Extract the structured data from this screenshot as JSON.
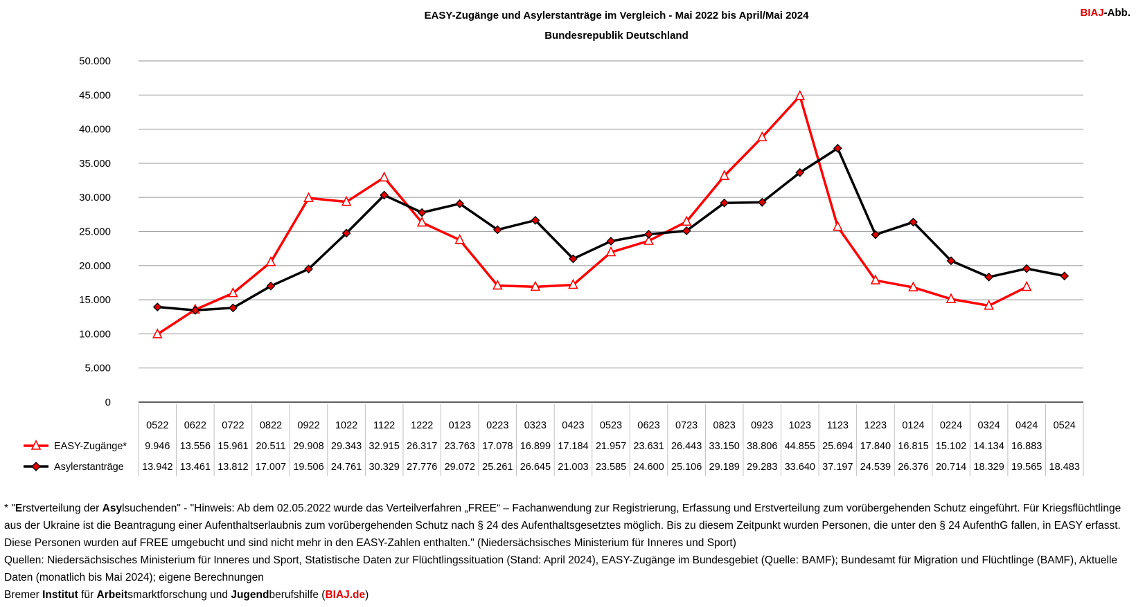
{
  "header": {
    "title": "EASY-Zugänge und Asylerstanträge im Vergleich - Mai 2022 bis April/Mai 2024",
    "subtitle": "Bundesrepublik Deutschland",
    "badge_brand": "BIAJ",
    "badge_suffix": "-Abb."
  },
  "colors": {
    "easy": "#ff0000",
    "asyl": "#000000",
    "marker_fill": "#e00000",
    "grid": "#a6a6a6"
  },
  "chart_data": {
    "type": "line",
    "ylim": [
      0,
      50000
    ],
    "yticks": [
      0,
      5000,
      10000,
      15000,
      20000,
      25000,
      30000,
      35000,
      40000,
      45000,
      50000
    ],
    "ytick_labels": [
      "0",
      "5.000",
      "10.000",
      "15.000",
      "20.000",
      "25.000",
      "30.000",
      "35.000",
      "40.000",
      "45.000",
      "50.000"
    ],
    "grid": true,
    "categories": [
      "0522",
      "0622",
      "0722",
      "0822",
      "0922",
      "1022",
      "1122",
      "1222",
      "0123",
      "0223",
      "0323",
      "0423",
      "0523",
      "0623",
      "0723",
      "0823",
      "0923",
      "1023",
      "1123",
      "1223",
      "0124",
      "0224",
      "0324",
      "0424",
      "0524"
    ],
    "series": [
      {
        "name": "EASY-Zugänge*",
        "marker": "triangle-open",
        "values": [
          9946,
          13556,
          15961,
          20511,
          29908,
          29343,
          32915,
          26317,
          23763,
          17078,
          16899,
          17184,
          21957,
          23631,
          26443,
          33150,
          38806,
          44855,
          25694,
          17840,
          16815,
          15102,
          14134,
          16883,
          null
        ],
        "labels": [
          "9.946",
          "13.556",
          "15.961",
          "20.511",
          "29.908",
          "29.343",
          "32.915",
          "26.317",
          "23.763",
          "17.078",
          "16.899",
          "17.184",
          "21.957",
          "23.631",
          "26.443",
          "33.150",
          "38.806",
          "44.855",
          "25.694",
          "17.840",
          "16.815",
          "15.102",
          "14.134",
          "16.883",
          ""
        ]
      },
      {
        "name": "Asylerstanträge",
        "marker": "diamond-filled",
        "values": [
          13942,
          13461,
          13812,
          17007,
          19506,
          24761,
          30329,
          27776,
          29072,
          25261,
          26645,
          21003,
          23585,
          24600,
          25106,
          29189,
          29283,
          33640,
          37197,
          24539,
          26376,
          20714,
          18329,
          19565,
          18483
        ],
        "labels": [
          "13.942",
          "13.461",
          "13.812",
          "17.007",
          "19.506",
          "24.761",
          "30.329",
          "27.776",
          "29.072",
          "25.261",
          "26.645",
          "21.003",
          "23.585",
          "24.600",
          "25.106",
          "29.189",
          "29.283",
          "33.640",
          "37.197",
          "24.539",
          "26.376",
          "20.714",
          "18.329",
          "19.565",
          "18.483"
        ]
      }
    ]
  },
  "footnote": {
    "line1_prefix": "* \"",
    "line1_b1": "E",
    "line1_t1": "rstverteilung der ",
    "line1_b2": "Asy",
    "line1_t2": "lsuchenden\" - \"Hinweis: Ab dem 02.05.2022 wurde das Verteilverfahren „FREE“ – Fachanwendung zur Registrierung, Erfassung und Erstverteilung zum vorübergehenden Schutz eingeführt. Für Kriegsflüchtlinge aus der Ukraine ist die Beantragung einer Aufenthaltserlaubnis zum vorübergehenden Schutz nach § 24 des Aufenthaltsgesetztes möglich. Bis zu diesem Zeitpunkt wurden Personen, die unter den § 24 AufenthG fallen, in EASY erfasst. Diese Personen wurden auf FREE umgebucht und sind nicht mehr in den EASY-Zahlen enthalten.\" (Niedersächsisches Ministerium für Inneres und Sport)",
    "sources": "Quellen: Niedersächsisches Ministerium für Inneres und Sport, Statistische Daten zur Flüchtlingssituation (Stand: April 2024), EASY-Zugänge im Bundesgebiet (Quelle: BAMF); Bundesamt für Migration und Flüchtlinge (BAMF), Aktuelle Daten (monatlich bis Mai 2024); eigene Berechnungen",
    "inst_t1": "Bremer ",
    "inst_b1": "Institut",
    "inst_t2": " für ",
    "inst_b2": "Arbeit",
    "inst_t3": "smarktforschung und ",
    "inst_b3": "Jugend",
    "inst_t4": "berufshilfe (",
    "inst_link": "BIAJ.de",
    "inst_t5": ")"
  }
}
